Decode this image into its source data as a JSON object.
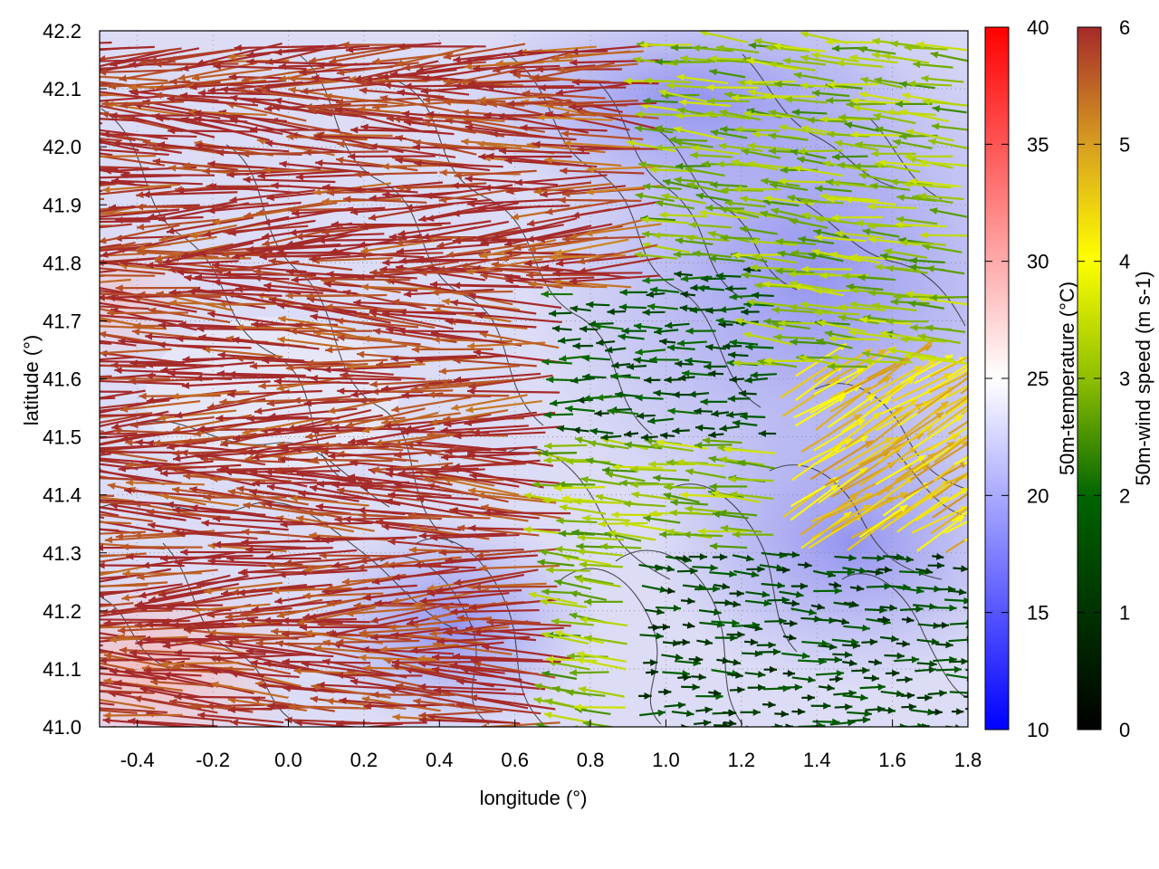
{
  "chart_data": {
    "type": "vector-field",
    "xlabel": "longitude (°)",
    "ylabel": "latitude (°)",
    "xlim": [
      -0.5,
      1.8
    ],
    "ylim": [
      41.0,
      42.2
    ],
    "xticks": [
      "-0.4",
      "-0.2",
      "0.0",
      "0.2",
      "0.4",
      "0.6",
      "0.8",
      "1.0",
      "1.2",
      "1.4",
      "1.6",
      "1.8"
    ],
    "yticks": [
      "41.0",
      "41.1",
      "41.2",
      "41.3",
      "41.4",
      "41.5",
      "41.6",
      "41.7",
      "41.8",
      "41.9",
      "42.0",
      "42.1",
      "42.2"
    ],
    "grid": true,
    "colorbars": [
      {
        "label": "50m-temperature (°C)",
        "range": [
          10,
          40
        ],
        "ticks": [
          "10",
          "15",
          "20",
          "25",
          "30",
          "35",
          "40"
        ],
        "colors": [
          "#0000ff",
          "#ffffff",
          "#ff0000"
        ]
      },
      {
        "label": "50m-wind speed (m s-1)",
        "range": [
          0,
          6
        ],
        "ticks": [
          "0",
          "1",
          "2",
          "3",
          "4",
          "5",
          "6"
        ],
        "colors": [
          "#000000",
          "#006400",
          "#8fbf00",
          "#ffff00",
          "#d8a020",
          "#a52a2a"
        ]
      }
    ],
    "wind_regimes": [
      {
        "region": "west (lon < 0.8)",
        "direction": "westward",
        "speed_ms": 6
      },
      {
        "region": "centre (lon 0.8-1.3, lat 41.5-41.8)",
        "direction": "westward",
        "speed_ms": 1.5
      },
      {
        "region": "south-east (lon > 0.9, lat < 41.3)",
        "direction": "eastward",
        "speed_ms": 1.5
      },
      {
        "region": "east (lon > 1.3, lat 41.3-41.6)",
        "direction": "north-eastward",
        "speed_ms": 4.5
      },
      {
        "region": "north-east (lon > 1.2, lat > 41.6)",
        "direction": "westward",
        "speed_ms": 3
      }
    ],
    "temperature_regimes": [
      {
        "region": "south-west corner",
        "temp_c": 28
      },
      {
        "region": "west",
        "temp_c": 24
      },
      {
        "region": "east",
        "temp_c": 19
      }
    ]
  }
}
